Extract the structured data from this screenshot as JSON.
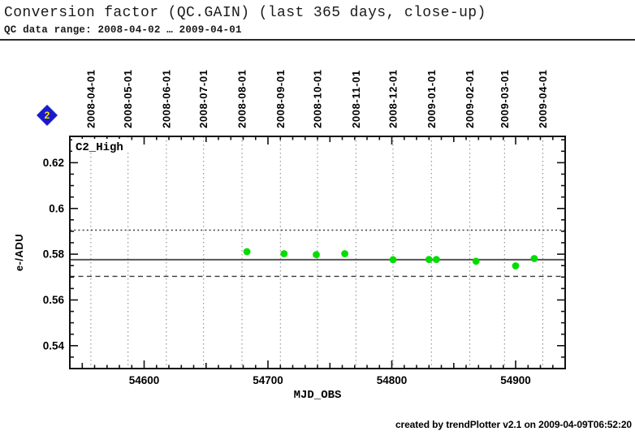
{
  "page_marker": {
    "label": "2",
    "fill": "#1a1acc",
    "text_color": "#ffe400"
  },
  "footer": {
    "credit": "created by trendPlotter v2.1 on 2009-04-09T06:52:20"
  },
  "chart_data": {
    "type": "scatter",
    "title": "Conversion factor (QC.GAIN) (last 365 days, close-up)",
    "subtitle": "QC data range: 2008-04-02 … 2009-04-01",
    "series_label": "C2_High",
    "xlabel": "MJD_OBS",
    "ylabel": "e-/ADU",
    "xlim": [
      54540,
      54940
    ],
    "ylim": [
      0.53,
      0.6315
    ],
    "x_major_ticks": [
      54600,
      54700,
      54800,
      54900
    ],
    "x_minor_step": 10,
    "y_major_ticks": [
      0.54,
      0.56,
      0.58,
      0.6,
      0.62
    ],
    "y_tick_labels": [
      "0.54",
      "0.56",
      "0.58",
      "0.6",
      "0.62"
    ],
    "y_minor_step": 0.005,
    "grid": true,
    "legend": null,
    "month_gridlines": [
      {
        "label": "2008-04-01",
        "mjd": 54557
      },
      {
        "label": "2008-05-01",
        "mjd": 54587
      },
      {
        "label": "2008-06-01",
        "mjd": 54618
      },
      {
        "label": "2008-07-01",
        "mjd": 54648
      },
      {
        "label": "2008-08-01",
        "mjd": 54679
      },
      {
        "label": "2008-09-01",
        "mjd": 54710
      },
      {
        "label": "2008-10-01",
        "mjd": 54740
      },
      {
        "label": "2008-11-01",
        "mjd": 54771
      },
      {
        "label": "2008-12-01",
        "mjd": 54801
      },
      {
        "label": "2009-01-01",
        "mjd": 54832
      },
      {
        "label": "2009-02-01",
        "mjd": 54863
      },
      {
        "label": "2009-03-01",
        "mjd": 54891
      },
      {
        "label": "2009-04-01",
        "mjd": 54922
      }
    ],
    "reference_lines": [
      {
        "name": "average",
        "value": 0.5776,
        "style": "solid"
      },
      {
        "name": "upper-limit",
        "value": 0.5905,
        "style": "dotted"
      },
      {
        "name": "lower-limit",
        "value": 0.5703,
        "style": "dashed"
      }
    ],
    "points": [
      {
        "mjd": 54683,
        "value": 0.5811
      },
      {
        "mjd": 54713,
        "value": 0.5802
      },
      {
        "mjd": 54739,
        "value": 0.5798
      },
      {
        "mjd": 54762,
        "value": 0.5802
      },
      {
        "mjd": 54801,
        "value": 0.5776
      },
      {
        "mjd": 54830,
        "value": 0.5777
      },
      {
        "mjd": 54836,
        "value": 0.5777
      },
      {
        "mjd": 54868,
        "value": 0.5769
      },
      {
        "mjd": 54900,
        "value": 0.5749
      },
      {
        "mjd": 54915,
        "value": 0.5781
      }
    ],
    "marker_color": "#00dd00",
    "grid_color": "#828282"
  }
}
